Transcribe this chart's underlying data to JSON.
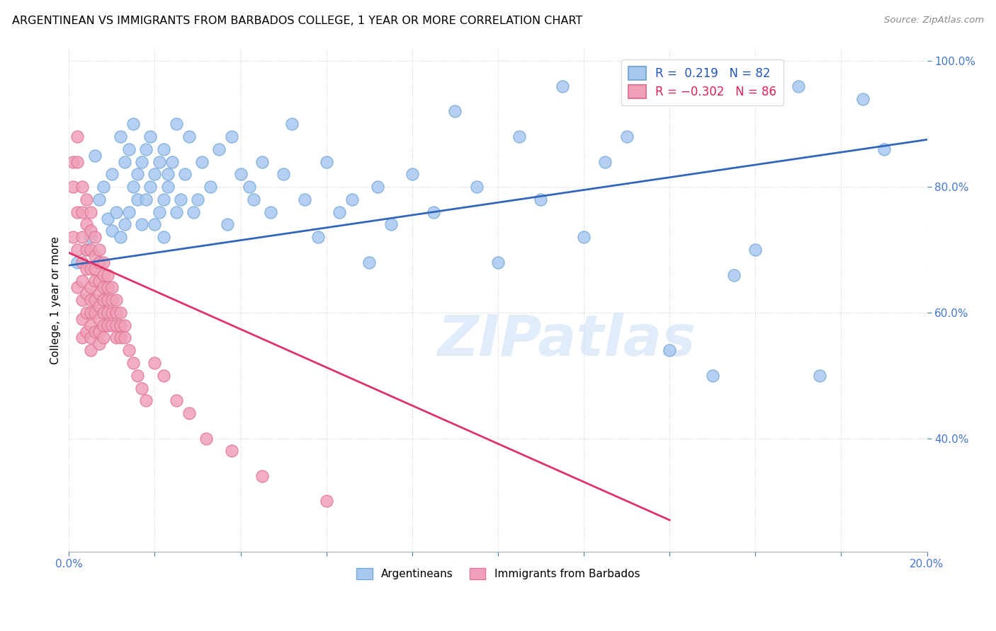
{
  "title": "ARGENTINEAN VS IMMIGRANTS FROM BARBADOS COLLEGE, 1 YEAR OR MORE CORRELATION CHART",
  "source": "Source: ZipAtlas.com",
  "ylabel": "College, 1 year or more",
  "xlim": [
    0.0,
    0.2
  ],
  "ylim": [
    0.22,
    1.02
  ],
  "xticks": [
    0.0,
    0.02,
    0.04,
    0.06,
    0.08,
    0.1,
    0.12,
    0.14,
    0.16,
    0.18,
    0.2
  ],
  "yticks": [
    0.4,
    0.6,
    0.8,
    1.0
  ],
  "ytick_labels": [
    "40.0%",
    "60.0%",
    "80.0%",
    "100.0%"
  ],
  "legend_label1": "Argentineans",
  "legend_label2": "Immigrants from Barbados",
  "blue_color": "#a8c8f0",
  "pink_color": "#f0a0b8",
  "blue_edge_color": "#7aaad8",
  "pink_edge_color": "#e07898",
  "blue_line_color": "#3366bb",
  "pink_line_color": "#dd3366",
  "blue_x": [
    0.002,
    0.004,
    0.005,
    0.006,
    0.007,
    0.008,
    0.009,
    0.01,
    0.01,
    0.011,
    0.012,
    0.012,
    0.013,
    0.013,
    0.014,
    0.014,
    0.015,
    0.015,
    0.016,
    0.016,
    0.017,
    0.017,
    0.018,
    0.018,
    0.019,
    0.019,
    0.02,
    0.02,
    0.021,
    0.021,
    0.022,
    0.022,
    0.022,
    0.023,
    0.023,
    0.024,
    0.025,
    0.025,
    0.026,
    0.027,
    0.028,
    0.029,
    0.03,
    0.031,
    0.033,
    0.035,
    0.037,
    0.038,
    0.04,
    0.042,
    0.043,
    0.045,
    0.047,
    0.05,
    0.052,
    0.055,
    0.058,
    0.06,
    0.063,
    0.066,
    0.07,
    0.072,
    0.075,
    0.08,
    0.085,
    0.09,
    0.095,
    0.1,
    0.105,
    0.11,
    0.115,
    0.12,
    0.125,
    0.13,
    0.14,
    0.15,
    0.155,
    0.16,
    0.17,
    0.175,
    0.185,
    0.19
  ],
  "blue_y": [
    0.68,
    0.7,
    0.72,
    0.85,
    0.78,
    0.8,
    0.75,
    0.73,
    0.82,
    0.76,
    0.88,
    0.72,
    0.84,
    0.74,
    0.86,
    0.76,
    0.8,
    0.9,
    0.82,
    0.78,
    0.84,
    0.74,
    0.86,
    0.78,
    0.8,
    0.88,
    0.82,
    0.74,
    0.84,
    0.76,
    0.78,
    0.86,
    0.72,
    0.8,
    0.82,
    0.84,
    0.76,
    0.9,
    0.78,
    0.82,
    0.88,
    0.76,
    0.78,
    0.84,
    0.8,
    0.86,
    0.74,
    0.88,
    0.82,
    0.8,
    0.78,
    0.84,
    0.76,
    0.82,
    0.9,
    0.78,
    0.72,
    0.84,
    0.76,
    0.78,
    0.68,
    0.8,
    0.74,
    0.82,
    0.76,
    0.92,
    0.8,
    0.68,
    0.88,
    0.78,
    0.96,
    0.72,
    0.84,
    0.88,
    0.54,
    0.5,
    0.66,
    0.7,
    0.96,
    0.5,
    0.94,
    0.86
  ],
  "pink_x": [
    0.001,
    0.001,
    0.001,
    0.002,
    0.002,
    0.002,
    0.002,
    0.002,
    0.003,
    0.003,
    0.003,
    0.003,
    0.003,
    0.003,
    0.003,
    0.003,
    0.004,
    0.004,
    0.004,
    0.004,
    0.004,
    0.004,
    0.004,
    0.005,
    0.005,
    0.005,
    0.005,
    0.005,
    0.005,
    0.005,
    0.005,
    0.005,
    0.005,
    0.006,
    0.006,
    0.006,
    0.006,
    0.006,
    0.006,
    0.006,
    0.007,
    0.007,
    0.007,
    0.007,
    0.007,
    0.007,
    0.007,
    0.007,
    0.008,
    0.008,
    0.008,
    0.008,
    0.008,
    0.008,
    0.008,
    0.009,
    0.009,
    0.009,
    0.009,
    0.009,
    0.01,
    0.01,
    0.01,
    0.01,
    0.011,
    0.011,
    0.011,
    0.011,
    0.012,
    0.012,
    0.012,
    0.013,
    0.013,
    0.014,
    0.015,
    0.016,
    0.017,
    0.018,
    0.02,
    0.022,
    0.025,
    0.028,
    0.032,
    0.038,
    0.045,
    0.06
  ],
  "pink_y": [
    0.84,
    0.8,
    0.72,
    0.88,
    0.84,
    0.76,
    0.7,
    0.64,
    0.8,
    0.76,
    0.72,
    0.68,
    0.65,
    0.62,
    0.59,
    0.56,
    0.78,
    0.74,
    0.7,
    0.67,
    0.63,
    0.6,
    0.57,
    0.76,
    0.73,
    0.7,
    0.67,
    0.64,
    0.62,
    0.6,
    0.58,
    0.56,
    0.54,
    0.72,
    0.69,
    0.67,
    0.65,
    0.62,
    0.6,
    0.57,
    0.7,
    0.68,
    0.65,
    0.63,
    0.61,
    0.59,
    0.57,
    0.55,
    0.68,
    0.66,
    0.64,
    0.62,
    0.6,
    0.58,
    0.56,
    0.66,
    0.64,
    0.62,
    0.6,
    0.58,
    0.64,
    0.62,
    0.6,
    0.58,
    0.62,
    0.6,
    0.58,
    0.56,
    0.6,
    0.58,
    0.56,
    0.58,
    0.56,
    0.54,
    0.52,
    0.5,
    0.48,
    0.46,
    0.52,
    0.5,
    0.46,
    0.44,
    0.4,
    0.38,
    0.34,
    0.3
  ],
  "blue_trend_x0": 0.0,
  "blue_trend_y0": 0.675,
  "blue_trend_x1": 0.2,
  "blue_trend_y1": 0.875,
  "pink_trend_x0": 0.0,
  "pink_trend_y0": 0.695,
  "pink_trend_x1": 0.14,
  "pink_trend_y1": 0.27,
  "watermark_text": "ZIPatlas",
  "figsize": [
    14.06,
    8.92
  ],
  "dpi": 100
}
